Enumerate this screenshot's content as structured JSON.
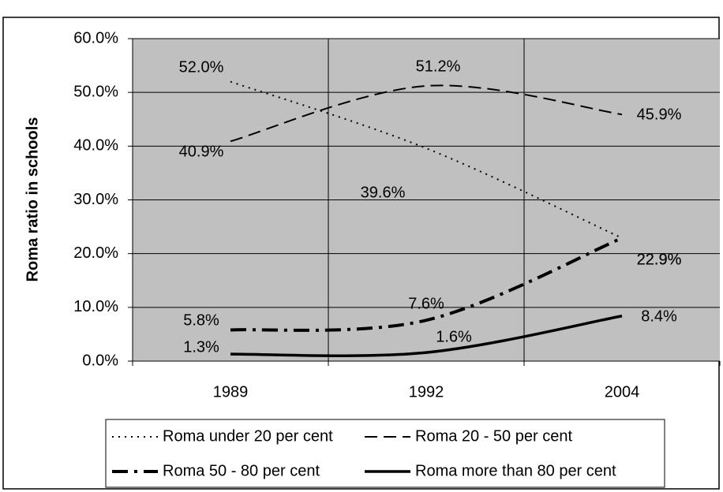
{
  "chart_data": {
    "type": "line",
    "y_label": "Roma ratio in schools",
    "categories": [
      "1989",
      "1992",
      "2004"
    ],
    "ylim": [
      0,
      60
    ],
    "yticks": [
      {
        "value": 0,
        "label": "0.0%"
      },
      {
        "value": 10,
        "label": "10.0%"
      },
      {
        "value": 20,
        "label": "20.0%"
      },
      {
        "value": 30,
        "label": "30.0%"
      },
      {
        "value": 40,
        "label": "40.0%"
      },
      {
        "value": 50,
        "label": "50.0%"
      },
      {
        "value": 60,
        "label": "60.0%"
      }
    ],
    "grid": true,
    "legend": "bottom",
    "series": [
      {
        "name": "Roma under 20 per cent",
        "color": "#000000",
        "style": "dotted",
        "values": [
          52.0,
          39.6,
          22.9
        ],
        "value_labels": [
          "52.0%",
          "39.6%",
          "22.9%"
        ]
      },
      {
        "name": "Roma 20 - 50 per cent",
        "color": "#000000",
        "style": "dashed",
        "values": [
          40.9,
          51.2,
          45.9
        ],
        "value_labels": [
          "40.9%",
          "51.2%",
          "45.9%"
        ]
      },
      {
        "name": "Roma 50 - 80 per cent",
        "color": "#000000",
        "style": "dash-dot",
        "values": [
          5.8,
          7.6,
          22.9
        ],
        "value_labels": [
          "5.8%",
          "7.6%",
          "22.9%"
        ]
      },
      {
        "name": "Roma more than 80 per cent",
        "color": "#000000",
        "style": "solid",
        "values": [
          1.3,
          1.6,
          8.4
        ],
        "value_labels": [
          "1.3%",
          "1.6%",
          "8.4%"
        ]
      }
    ]
  }
}
